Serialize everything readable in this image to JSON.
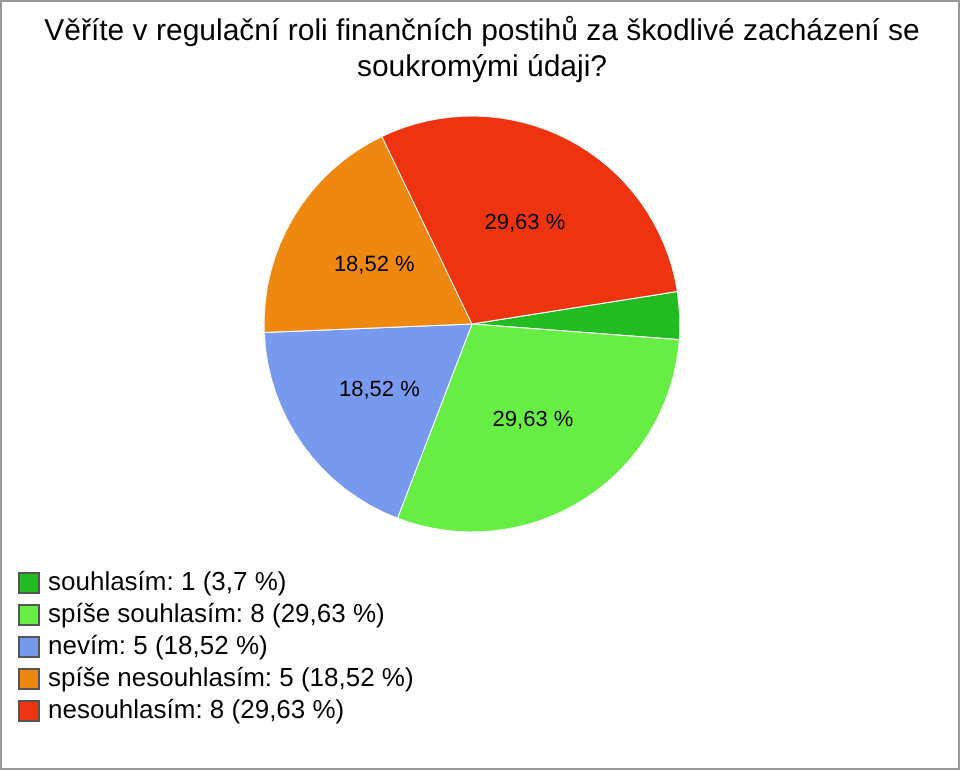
{
  "chart_data": {
    "type": "pie",
    "title": "Věříte v regulační roli finančních postihů za škodlivé zacházení se soukromými údaji?",
    "categories": [
      "souhlasím: 1 (3,7 %)",
      "spíše souhlasím: 8 (29,63 %)",
      "nevím: 5 (18,52 %)",
      "spíše nesouhlasím: 5 (18,52 %)",
      "nesouhlasím: 8 (29,63 %)"
    ],
    "values": [
      3.7,
      29.63,
      18.52,
      18.52,
      29.63
    ],
    "colors": [
      "#22bb22",
      "#66ee44",
      "#7799ee",
      "#ee8811",
      "#ee3311"
    ],
    "value_labels": [
      null,
      "29,63 %",
      "18,52 %",
      "18,52 %",
      "29,63 %"
    ],
    "legend": "bottom left"
  }
}
